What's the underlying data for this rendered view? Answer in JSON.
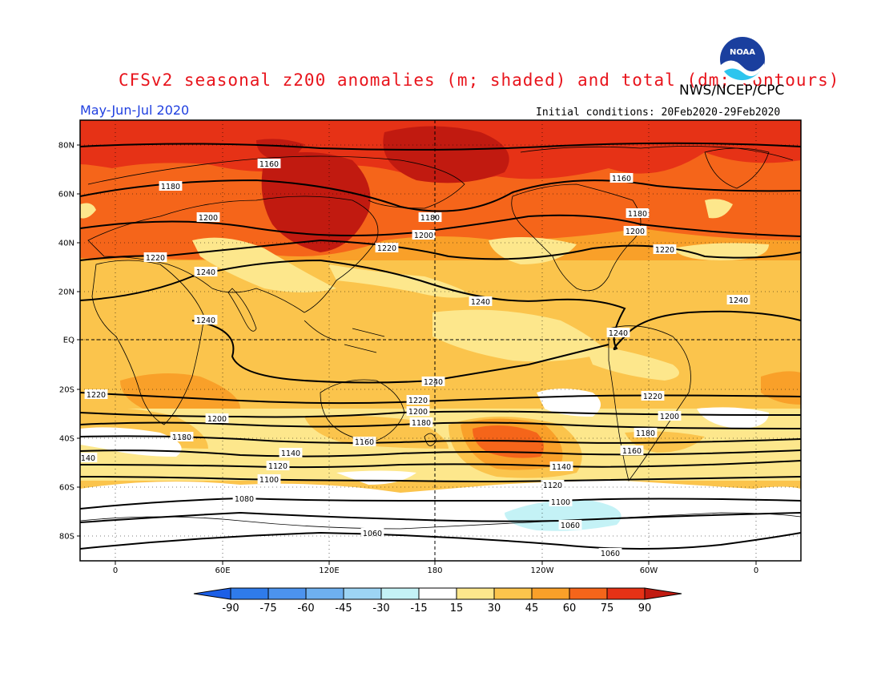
{
  "title": "CFSv2 seasonal z200 anomalies (m; shaded) and total (dm; contours)",
  "organization": "NWS/NCEP/CPC",
  "logo_text": "NOAA",
  "period": "May-Jun-Jul 2020",
  "initial_conditions": "Initial conditions: 20Feb2020-29Feb2020",
  "lat_labels": [
    "80N",
    "60N",
    "40N",
    "20N",
    "EQ",
    "20S",
    "40S",
    "60S",
    "80S"
  ],
  "lon_labels": [
    "0",
    "60E",
    "120E",
    "180",
    "120W",
    "60W",
    "0"
  ],
  "colorbar": {
    "labels": [
      "-90",
      "-75",
      "-60",
      "-45",
      "-30",
      "-15",
      "15",
      "30",
      "45",
      "60",
      "75",
      "90"
    ],
    "colors": [
      "#1c5fe6",
      "#2f7bea",
      "#4c93ee",
      "#6eb0f0",
      "#9dd4f4",
      "#c4f2f6",
      "#ffffff",
      "#fde78c",
      "#fbc44c",
      "#f9a029",
      "#f5651a",
      "#e63216",
      "#c11a10"
    ]
  },
  "contour_labels": [
    "1160",
    "1180",
    "1200",
    "1220",
    "1240",
    "1240",
    "1240",
    "1240",
    "1220",
    "1200",
    "1180",
    "1160",
    "1140",
    "1120",
    "1100",
    "1080",
    "1060",
    "1060",
    "1160",
    "1180",
    "1200",
    "1220",
    "1240",
    "1220",
    "1200",
    "1180",
    "1160",
    "1140",
    "1120",
    "1100",
    "1060",
    "140"
  ]
}
